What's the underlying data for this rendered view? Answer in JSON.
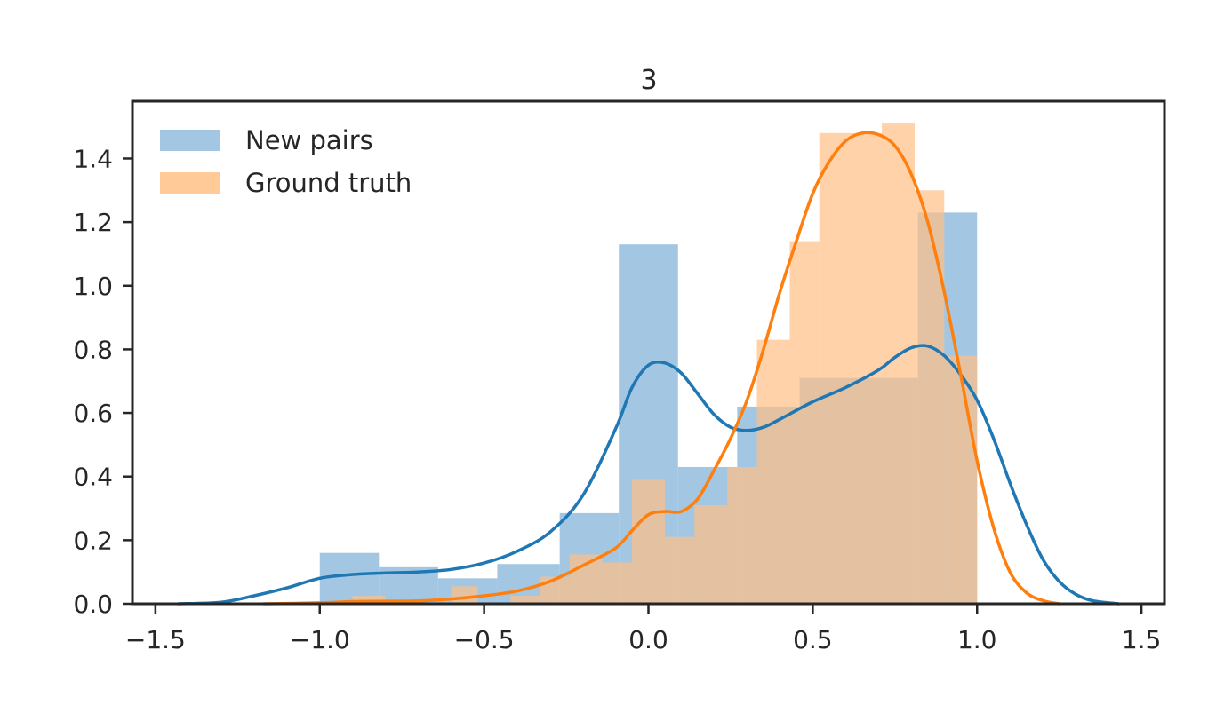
{
  "chart_data": {
    "type": "histogram-kde",
    "title": "3",
    "xlabel": "",
    "ylabel": "",
    "xlim": [
      -1.57,
      1.57
    ],
    "ylim": [
      0,
      1.58
    ],
    "xticks": [
      -1.5,
      -1.0,
      -0.5,
      0.0,
      0.5,
      1.0,
      1.5
    ],
    "xtick_labels": [
      "−1.5",
      "−1.0",
      "−0.5",
      "0.0",
      "0.5",
      "1.0",
      "1.5"
    ],
    "yticks": [
      0.0,
      0.2,
      0.4,
      0.6,
      0.8,
      1.0,
      1.2,
      1.4
    ],
    "ytick_labels": [
      "0.0",
      "0.2",
      "0.4",
      "0.6",
      "0.8",
      "1.0",
      "1.2",
      "1.4"
    ],
    "grid": false,
    "legend_position": "upper-left",
    "series": [
      {
        "name": "New pairs",
        "hist_color": "#9ec4e0",
        "kde_color": "#1f77b4",
        "bins": [
          {
            "x0": -1.0,
            "x1": -0.82,
            "h": 0.16
          },
          {
            "x0": -0.82,
            "x1": -0.64,
            "h": 0.115
          },
          {
            "x0": -0.64,
            "x1": -0.46,
            "h": 0.08
          },
          {
            "x0": -0.46,
            "x1": -0.27,
            "h": 0.125
          },
          {
            "x0": -0.27,
            "x1": -0.09,
            "h": 0.285
          },
          {
            "x0": -0.09,
            "x1": 0.09,
            "h": 1.13
          },
          {
            "x0": 0.09,
            "x1": 0.27,
            "h": 0.43
          },
          {
            "x0": 0.27,
            "x1": 0.46,
            "h": 0.62
          },
          {
            "x0": 0.46,
            "x1": 0.64,
            "h": 0.71
          },
          {
            "x0": 0.64,
            "x1": 0.82,
            "h": 0.71
          },
          {
            "x0": 0.82,
            "x1": 1.0,
            "h": 1.23
          }
        ],
        "kde": [
          [
            -1.43,
            0.0
          ],
          [
            -1.3,
            0.005
          ],
          [
            -1.2,
            0.025
          ],
          [
            -1.1,
            0.05
          ],
          [
            -1.0,
            0.08
          ],
          [
            -0.9,
            0.092
          ],
          [
            -0.8,
            0.097
          ],
          [
            -0.7,
            0.1
          ],
          [
            -0.6,
            0.108
          ],
          [
            -0.5,
            0.128
          ],
          [
            -0.4,
            0.165
          ],
          [
            -0.3,
            0.225
          ],
          [
            -0.2,
            0.34
          ],
          [
            -0.1,
            0.55
          ],
          [
            -0.05,
            0.68
          ],
          [
            0.0,
            0.75
          ],
          [
            0.05,
            0.757
          ],
          [
            0.1,
            0.725
          ],
          [
            0.15,
            0.66
          ],
          [
            0.2,
            0.595
          ],
          [
            0.25,
            0.555
          ],
          [
            0.3,
            0.545
          ],
          [
            0.35,
            0.555
          ],
          [
            0.4,
            0.58
          ],
          [
            0.5,
            0.635
          ],
          [
            0.6,
            0.68
          ],
          [
            0.7,
            0.735
          ],
          [
            0.75,
            0.775
          ],
          [
            0.8,
            0.805
          ],
          [
            0.85,
            0.81
          ],
          [
            0.9,
            0.78
          ],
          [
            0.95,
            0.72
          ],
          [
            1.0,
            0.64
          ],
          [
            1.05,
            0.52
          ],
          [
            1.1,
            0.38
          ],
          [
            1.15,
            0.25
          ],
          [
            1.2,
            0.14
          ],
          [
            1.25,
            0.07
          ],
          [
            1.3,
            0.03
          ],
          [
            1.35,
            0.01
          ],
          [
            1.43,
            0.0
          ]
        ]
      },
      {
        "name": "Ground truth",
        "hist_color": "#ffbf86",
        "kde_color": "#ff7f0e",
        "bins": [
          {
            "x0": -0.9,
            "x1": -0.8,
            "h": 0.025
          },
          {
            "x0": -0.8,
            "x1": -0.6,
            "h": 0.0
          },
          {
            "x0": -0.6,
            "x1": -0.52,
            "h": 0.055
          },
          {
            "x0": -0.52,
            "x1": -0.42,
            "h": 0.0
          },
          {
            "x0": -0.42,
            "x1": -0.33,
            "h": 0.025
          },
          {
            "x0": -0.33,
            "x1": -0.24,
            "h": 0.085
          },
          {
            "x0": -0.24,
            "x1": -0.14,
            "h": 0.155
          },
          {
            "x0": -0.14,
            "x1": -0.05,
            "h": 0.13
          },
          {
            "x0": -0.05,
            "x1": 0.05,
            "h": 0.39
          },
          {
            "x0": 0.05,
            "x1": 0.14,
            "h": 0.21
          },
          {
            "x0": 0.14,
            "x1": 0.24,
            "h": 0.31
          },
          {
            "x0": 0.24,
            "x1": 0.33,
            "h": 0.43
          },
          {
            "x0": 0.33,
            "x1": 0.43,
            "h": 0.83
          },
          {
            "x0": 0.43,
            "x1": 0.52,
            "h": 1.14
          },
          {
            "x0": 0.52,
            "x1": 0.62,
            "h": 1.48
          },
          {
            "x0": 0.62,
            "x1": 0.71,
            "h": 1.48
          },
          {
            "x0": 0.71,
            "x1": 0.81,
            "h": 1.51
          },
          {
            "x0": 0.81,
            "x1": 0.9,
            "h": 1.3
          },
          {
            "x0": 0.9,
            "x1": 1.0,
            "h": 0.78
          }
        ],
        "kde": [
          [
            -1.17,
            0.0
          ],
          [
            -1.0,
            0.003
          ],
          [
            -0.9,
            0.007
          ],
          [
            -0.8,
            0.008
          ],
          [
            -0.7,
            0.009
          ],
          [
            -0.6,
            0.015
          ],
          [
            -0.5,
            0.025
          ],
          [
            -0.4,
            0.04
          ],
          [
            -0.3,
            0.07
          ],
          [
            -0.2,
            0.12
          ],
          [
            -0.1,
            0.175
          ],
          [
            -0.05,
            0.23
          ],
          [
            0.0,
            0.28
          ],
          [
            0.05,
            0.29
          ],
          [
            0.1,
            0.29
          ],
          [
            0.15,
            0.33
          ],
          [
            0.2,
            0.42
          ],
          [
            0.25,
            0.52
          ],
          [
            0.3,
            0.64
          ],
          [
            0.35,
            0.8
          ],
          [
            0.4,
            0.98
          ],
          [
            0.45,
            1.14
          ],
          [
            0.5,
            1.29
          ],
          [
            0.55,
            1.39
          ],
          [
            0.6,
            1.455
          ],
          [
            0.65,
            1.48
          ],
          [
            0.7,
            1.475
          ],
          [
            0.75,
            1.44
          ],
          [
            0.8,
            1.35
          ],
          [
            0.85,
            1.2
          ],
          [
            0.9,
            0.98
          ],
          [
            0.95,
            0.72
          ],
          [
            1.0,
            0.45
          ],
          [
            1.05,
            0.24
          ],
          [
            1.1,
            0.1
          ],
          [
            1.15,
            0.035
          ],
          [
            1.2,
            0.01
          ],
          [
            1.25,
            0.0
          ]
        ]
      }
    ]
  }
}
